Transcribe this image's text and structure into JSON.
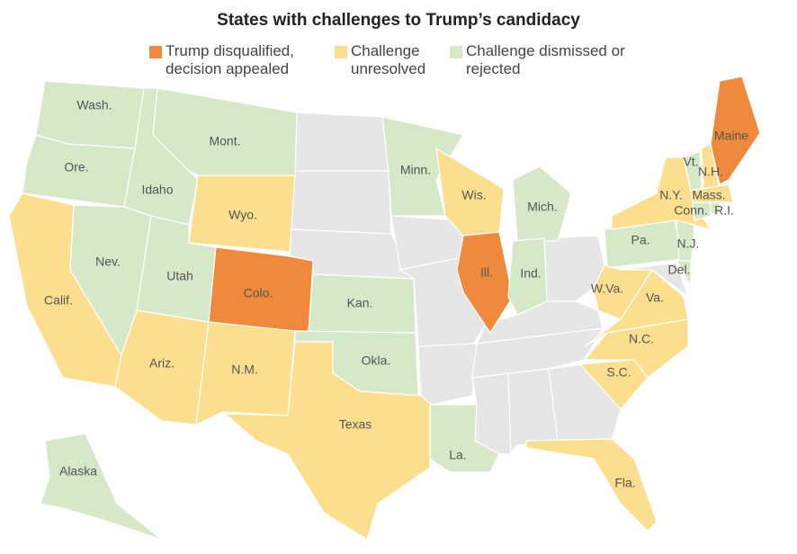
{
  "title": "States with challenges to Trump’s candidacy",
  "legend": [
    {
      "label": "Trump disqualified, decision appealed",
      "color": "#ef8a3d"
    },
    {
      "label": "Challenge unresolved",
      "color": "#fbdf8e"
    },
    {
      "label": "Challenge dismissed or rejected",
      "color": "#d5e8c8"
    }
  ],
  "states": [
    {
      "name": "Wash.",
      "status": 2
    },
    {
      "name": "Ore.",
      "status": 2
    },
    {
      "name": "Calif.",
      "status": 1
    },
    {
      "name": "Nev.",
      "status": 2
    },
    {
      "name": "Idaho",
      "status": 2
    },
    {
      "name": "Mont.",
      "status": 2
    },
    {
      "name": "Wyo.",
      "status": 1
    },
    {
      "name": "Utah",
      "status": 2
    },
    {
      "name": "Colo.",
      "status": 0
    },
    {
      "name": "Ariz.",
      "status": 1
    },
    {
      "name": "N.M.",
      "status": 1
    },
    {
      "name": "Alaska",
      "status": 2
    },
    {
      "name": "Kan.",
      "status": 2
    },
    {
      "name": "Okla.",
      "status": 2
    },
    {
      "name": "Texas",
      "status": 1
    },
    {
      "name": "Minn.",
      "status": 2
    },
    {
      "name": "Wis.",
      "status": 1
    },
    {
      "name": "Ill.",
      "status": 0
    },
    {
      "name": "Mich.",
      "status": 2
    },
    {
      "name": "Ind.",
      "status": 2
    },
    {
      "name": "La.",
      "status": 2
    },
    {
      "name": "Fla.",
      "status": 1
    },
    {
      "name": "Pa.",
      "status": 2
    },
    {
      "name": "N.Y.",
      "status": 1
    },
    {
      "name": "Vt.",
      "status": 2
    },
    {
      "name": "N.H.",
      "status": 1
    },
    {
      "name": "Maine",
      "status": 0
    },
    {
      "name": "Mass.",
      "status": 1
    },
    {
      "name": "Conn.",
      "status": 2
    },
    {
      "name": "R.I.",
      "status": 2
    },
    {
      "name": "N.J.",
      "status": 2
    },
    {
      "name": "Del.",
      "status": 2
    },
    {
      "name": "W.Va.",
      "status": 1
    },
    {
      "name": "Va.",
      "status": 1
    },
    {
      "name": "N.C.",
      "status": 1
    },
    {
      "name": "S.C.",
      "status": 1
    }
  ]
}
